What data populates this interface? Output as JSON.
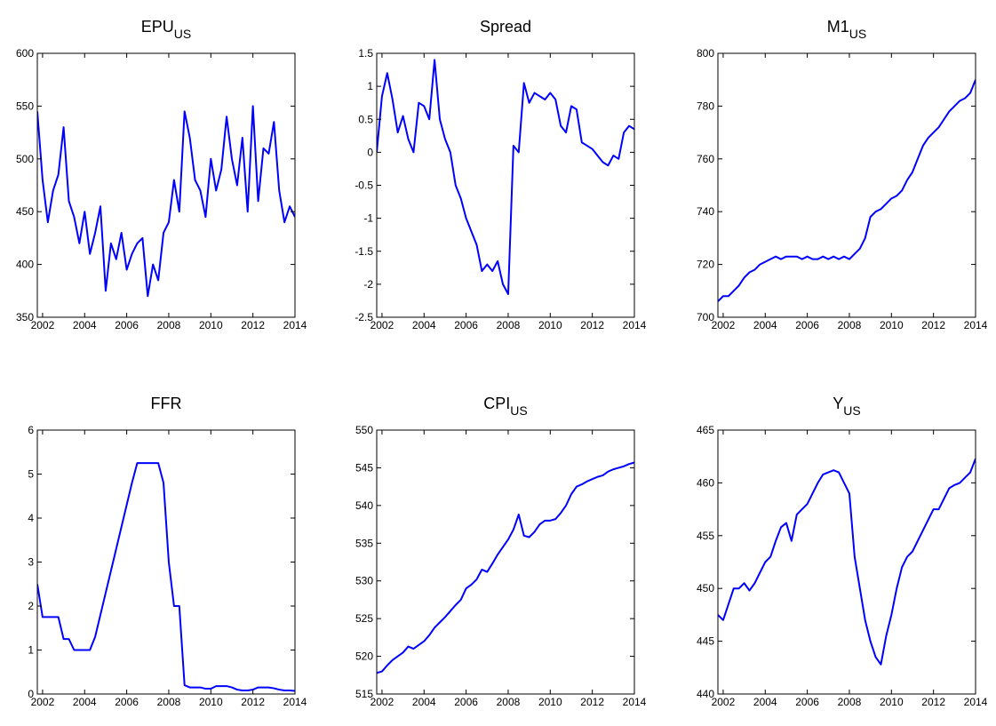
{
  "chart_data": [
    {
      "type": "line",
      "title": "EPU",
      "title_subscript": "US",
      "color": "#0000ff",
      "x": [
        2001.75,
        2002,
        2002.25,
        2002.5,
        2002.75,
        2003,
        2003.25,
        2003.5,
        2003.75,
        2004,
        2004.25,
        2004.5,
        2004.75,
        2005,
        2005.25,
        2005.5,
        2005.75,
        2006,
        2006.25,
        2006.5,
        2006.75,
        2007,
        2007.25,
        2007.5,
        2007.75,
        2008,
        2008.25,
        2008.5,
        2008.75,
        2009,
        2009.25,
        2009.5,
        2009.75,
        2010,
        2010.25,
        2010.5,
        2010.75,
        2011,
        2011.25,
        2011.5,
        2011.75,
        2012,
        2012.25,
        2012.5,
        2012.75,
        2013,
        2013.25,
        2013.5,
        2013.75,
        2014
      ],
      "values": [
        545,
        480,
        440,
        470,
        485,
        530,
        460,
        445,
        420,
        450,
        410,
        430,
        455,
        375,
        420,
        405,
        430,
        395,
        410,
        420,
        425,
        370,
        400,
        385,
        430,
        440,
        480,
        450,
        545,
        520,
        480,
        470,
        445,
        500,
        470,
        490,
        540,
        500,
        475,
        520,
        450,
        550,
        460,
        510,
        505,
        535,
        470,
        440,
        455,
        445
      ],
      "xlim": [
        2001.75,
        2014
      ],
      "xticks": [
        2002,
        2004,
        2006,
        2008,
        2010,
        2012,
        2014
      ],
      "ylim": [
        350,
        600
      ],
      "yticks": [
        350,
        400,
        450,
        500,
        550,
        600
      ]
    },
    {
      "type": "line",
      "title": "Spread",
      "color": "#0000ff",
      "x": [
        2001.75,
        2002,
        2002.25,
        2002.5,
        2002.75,
        2003,
        2003.25,
        2003.5,
        2003.75,
        2004,
        2004.25,
        2004.5,
        2004.75,
        2005,
        2005.25,
        2005.5,
        2005.75,
        2006,
        2006.25,
        2006.5,
        2006.75,
        2007,
        2007.25,
        2007.5,
        2007.75,
        2008,
        2008.25,
        2008.5,
        2008.75,
        2009,
        2009.25,
        2009.5,
        2009.75,
        2010,
        2010.25,
        2010.5,
        2010.75,
        2011,
        2011.25,
        2011.5,
        2011.75,
        2012,
        2012.25,
        2012.5,
        2012.75,
        2013,
        2013.25,
        2013.5,
        2013.75,
        2014
      ],
      "values": [
        0,
        0.85,
        1.2,
        0.8,
        0.3,
        0.55,
        0.2,
        0,
        0.75,
        0.7,
        0.5,
        1.4,
        0.5,
        0.2,
        0,
        -0.5,
        -0.7,
        -1,
        -1.2,
        -1.4,
        -1.8,
        -1.7,
        -1.8,
        -1.65,
        -2,
        -2.15,
        0.1,
        0,
        1.05,
        0.75,
        0.9,
        0.85,
        0.8,
        0.9,
        0.8,
        0.4,
        0.3,
        0.7,
        0.65,
        0.15,
        0.1,
        0.05,
        -0.05,
        -0.15,
        -0.2,
        -0.05,
        -0.1,
        0.3,
        0.4,
        0.35
      ],
      "xlim": [
        2001.75,
        2014
      ],
      "xticks": [
        2002,
        2004,
        2006,
        2008,
        2010,
        2012,
        2014
      ],
      "ylim": [
        -2.5,
        1.5
      ],
      "yticks": [
        -2.5,
        -2,
        -1.5,
        -1,
        -0.5,
        0,
        0.5,
        1,
        1.5
      ]
    },
    {
      "type": "line",
      "title": "M1",
      "title_subscript": "US",
      "color": "#0000ff",
      "x": [
        2001.75,
        2002,
        2002.25,
        2002.5,
        2002.75,
        2003,
        2003.25,
        2003.5,
        2003.75,
        2004,
        2004.25,
        2004.5,
        2004.75,
        2005,
        2005.25,
        2005.5,
        2005.75,
        2006,
        2006.25,
        2006.5,
        2006.75,
        2007,
        2007.25,
        2007.5,
        2007.75,
        2008,
        2008.25,
        2008.5,
        2008.75,
        2009,
        2009.25,
        2009.5,
        2009.75,
        2010,
        2010.25,
        2010.5,
        2010.75,
        2011,
        2011.25,
        2011.5,
        2011.75,
        2012,
        2012.25,
        2012.5,
        2012.75,
        2013,
        2013.25,
        2013.5,
        2013.75,
        2014
      ],
      "values": [
        706,
        708,
        708,
        710,
        712,
        715,
        717,
        718,
        720,
        721,
        722,
        723,
        722,
        723,
        723,
        723,
        722,
        723,
        722,
        722,
        723,
        722,
        723,
        722,
        723,
        722,
        724,
        726,
        730,
        738,
        740,
        741,
        743,
        745,
        746,
        748,
        752,
        755,
        760,
        765,
        768,
        770,
        772,
        775,
        778,
        780,
        782,
        783,
        785,
        790
      ],
      "xlim": [
        2001.75,
        2014
      ],
      "xticks": [
        2002,
        2004,
        2006,
        2008,
        2010,
        2012,
        2014
      ],
      "ylim": [
        700,
        800
      ],
      "yticks": [
        700,
        720,
        740,
        760,
        780,
        800
      ]
    },
    {
      "type": "line",
      "title": "FFR",
      "color": "#0000ff",
      "x": [
        2001.75,
        2002,
        2002.25,
        2002.5,
        2002.75,
        2003,
        2003.25,
        2003.5,
        2003.75,
        2004,
        2004.25,
        2004.5,
        2004.75,
        2005,
        2005.25,
        2005.5,
        2005.75,
        2006,
        2006.25,
        2006.5,
        2006.75,
        2007,
        2007.25,
        2007.5,
        2007.75,
        2008,
        2008.25,
        2008.5,
        2008.75,
        2009,
        2009.25,
        2009.5,
        2009.75,
        2010,
        2010.25,
        2010.5,
        2010.75,
        2011,
        2011.25,
        2011.5,
        2011.75,
        2012,
        2012.25,
        2012.5,
        2012.75,
        2013,
        2013.25,
        2013.5,
        2013.75,
        2014
      ],
      "values": [
        2.5,
        1.75,
        1.75,
        1.75,
        1.75,
        1.25,
        1.25,
        1,
        1,
        1,
        1,
        1.3,
        1.8,
        2.3,
        2.8,
        3.3,
        3.8,
        4.3,
        4.8,
        5.25,
        5.25,
        5.25,
        5.25,
        5.25,
        4.8,
        3,
        2,
        2,
        0.2,
        0.15,
        0.15,
        0.15,
        0.12,
        0.12,
        0.18,
        0.18,
        0.18,
        0.15,
        0.1,
        0.08,
        0.08,
        0.1,
        0.15,
        0.15,
        0.15,
        0.13,
        0.1,
        0.08,
        0.08,
        0.07
      ],
      "xlim": [
        2001.75,
        2014
      ],
      "xticks": [
        2002,
        2004,
        2006,
        2008,
        2010,
        2012,
        2014
      ],
      "ylim": [
        0,
        6
      ],
      "yticks": [
        0,
        1,
        2,
        3,
        4,
        5,
        6
      ]
    },
    {
      "type": "line",
      "title": "CPI",
      "title_subscript": "US",
      "color": "#0000ff",
      "x": [
        2001.75,
        2002,
        2002.25,
        2002.5,
        2002.75,
        2003,
        2003.25,
        2003.5,
        2003.75,
        2004,
        2004.25,
        2004.5,
        2004.75,
        2005,
        2005.25,
        2005.5,
        2005.75,
        2006,
        2006.25,
        2006.5,
        2006.75,
        2007,
        2007.25,
        2007.5,
        2007.75,
        2008,
        2008.25,
        2008.5,
        2008.75,
        2009,
        2009.25,
        2009.5,
        2009.75,
        2010,
        2010.25,
        2010.5,
        2010.75,
        2011,
        2011.25,
        2011.5,
        2011.75,
        2012,
        2012.25,
        2012.5,
        2012.75,
        2013,
        2013.25,
        2013.5,
        2013.75,
        2014
      ],
      "values": [
        517.8,
        518,
        518.8,
        519.5,
        520,
        520.5,
        521.3,
        521,
        521.5,
        522,
        522.8,
        523.8,
        524.5,
        525.2,
        526,
        526.8,
        527.5,
        529,
        529.5,
        530.2,
        531.5,
        531.2,
        532.3,
        533.5,
        534.5,
        535.5,
        536.8,
        538.8,
        536,
        535.8,
        536.5,
        537.5,
        538,
        538,
        538.2,
        539,
        540,
        541.5,
        542.5,
        542.8,
        543.2,
        543.5,
        543.8,
        544,
        544.5,
        544.8,
        545,
        545.2,
        545.5,
        545.7
      ],
      "xlim": [
        2001.75,
        2014
      ],
      "xticks": [
        2002,
        2004,
        2006,
        2008,
        2010,
        2012,
        2014
      ],
      "ylim": [
        515,
        550
      ],
      "yticks": [
        515,
        520,
        525,
        530,
        535,
        540,
        545,
        550
      ]
    },
    {
      "type": "line",
      "title": "Y",
      "title_subscript": "US",
      "color": "#0000ff",
      "x": [
        2001.75,
        2002,
        2002.25,
        2002.5,
        2002.75,
        2003,
        2003.25,
        2003.5,
        2003.75,
        2004,
        2004.25,
        2004.5,
        2004.75,
        2005,
        2005.25,
        2005.5,
        2005.75,
        2006,
        2006.25,
        2006.5,
        2006.75,
        2007,
        2007.25,
        2007.5,
        2007.75,
        2008,
        2008.25,
        2008.5,
        2008.75,
        2009,
        2009.25,
        2009.5,
        2009.75,
        2010,
        2010.25,
        2010.5,
        2010.75,
        2011,
        2011.25,
        2011.5,
        2011.75,
        2012,
        2012.25,
        2012.5,
        2012.75,
        2013,
        2013.25,
        2013.5,
        2013.75,
        2014
      ],
      "values": [
        447.5,
        447,
        448.5,
        450,
        450,
        450.5,
        449.8,
        450.5,
        451.5,
        452.5,
        453,
        454.5,
        455.8,
        456.2,
        454.5,
        457,
        457.5,
        458,
        459,
        460,
        460.8,
        461,
        461.2,
        461,
        460,
        459,
        453,
        450,
        447,
        445,
        443.5,
        442.8,
        445.5,
        447.5,
        450,
        452,
        453,
        453.5,
        454.5,
        455.5,
        456.5,
        457.5,
        457.5,
        458.5,
        459.5,
        459.8,
        460,
        460.5,
        461,
        462.3
      ],
      "xlim": [
        2001.75,
        2014
      ],
      "xticks": [
        2002,
        2004,
        2006,
        2008,
        2010,
        2012,
        2014
      ],
      "ylim": [
        440,
        465
      ],
      "yticks": [
        440,
        445,
        450,
        455,
        460,
        465
      ]
    }
  ]
}
